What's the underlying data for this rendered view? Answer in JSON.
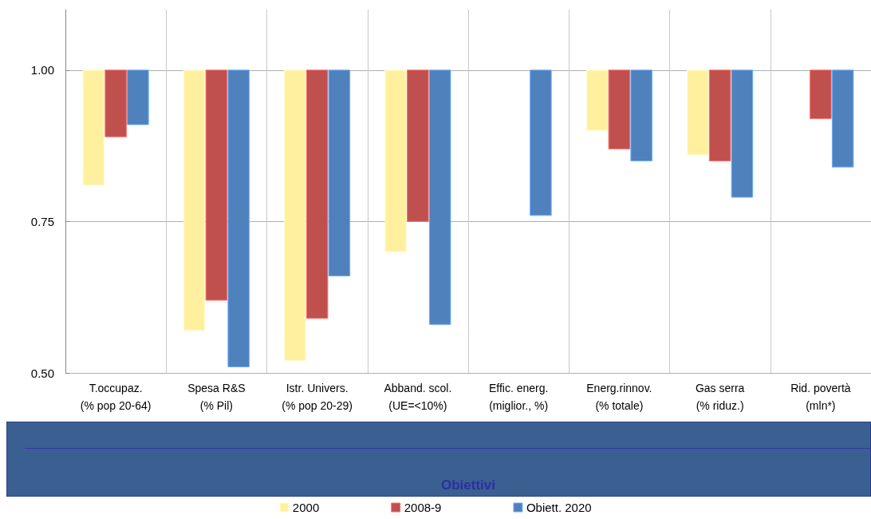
{
  "chart_data": {
    "type": "bar",
    "xlabel": "Obiettivi",
    "categories": [
      "T.occupaz.\n(% pop 20-64)",
      "Spesa R&S\n(% Pil)",
      "Istr. Univers.\n(% pop 20-29)",
      "Abband. scol.\n(UE=<10%)",
      "Effic. energ.\n(miglior., %)",
      "Energ.rinnov.\n(% totale)",
      "Gas serra\n(% riduz.)",
      "Rid. povertà\n(mln*)"
    ],
    "series": [
      {
        "name": "2000",
        "color": "#fff0a0",
        "base": [
          1,
          1,
          1,
          1,
          null,
          1,
          1,
          null
        ],
        "values": [
          -0.19,
          -0.43,
          -0.48,
          -0.3,
          null,
          -0.1,
          -0.14,
          null
        ]
      },
      {
        "name": "2008-9",
        "color": "#c0504d",
        "base": [
          1,
          1,
          1,
          1,
          null,
          1,
          1,
          1
        ],
        "values": [
          -0.11,
          -0.38,
          -0.41,
          -0.25,
          null,
          -0.13,
          -0.15,
          -0.08
        ]
      },
      {
        "name": "Obiett. 2020",
        "color": "#4f81bd",
        "base": [
          1,
          1,
          1,
          1,
          1,
          1,
          1,
          1
        ],
        "values": [
          -0.09,
          -0.49,
          -0.34,
          -0.42,
          -0.24,
          -0.15,
          -0.21,
          -0.16
        ]
      }
    ],
    "ylim": [
      0.5,
      1.1
    ],
    "yticks": [
      {
        "value": 0.5,
        "label": "0.50"
      },
      {
        "value": 0.75,
        "label": "0.75"
      },
      {
        "value": 1,
        "label": "1.00"
      }
    ],
    "grid": true,
    "legend": "bottom"
  }
}
